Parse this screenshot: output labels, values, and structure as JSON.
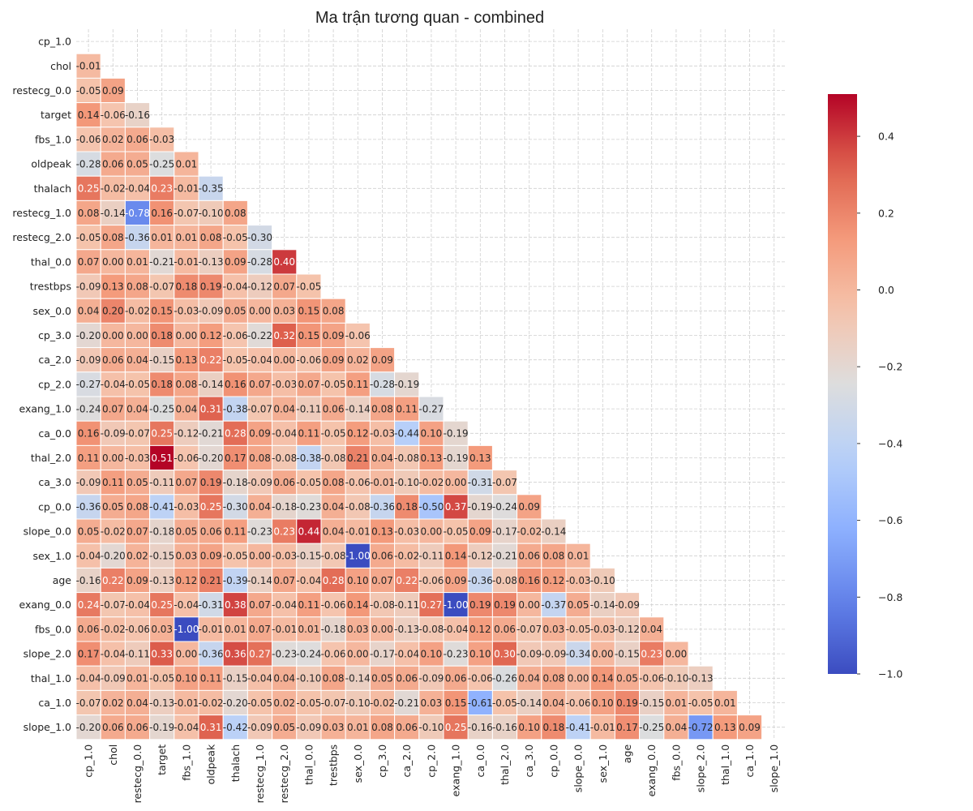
{
  "chart_data": {
    "type": "heatmap",
    "title": "Ma trận tương quan - combined",
    "labels": [
      "cp_1.0",
      "chol",
      "restecg_0.0",
      "target",
      "fbs_1.0",
      "oldpeak",
      "thalach",
      "restecg_1.0",
      "restecg_2.0",
      "thal_0.0",
      "trestbps",
      "sex_0.0",
      "cp_3.0",
      "ca_2.0",
      "cp_2.0",
      "exang_1.0",
      "ca_0.0",
      "thal_2.0",
      "ca_3.0",
      "cp_0.0",
      "slope_0.0",
      "sex_1.0",
      "age",
      "exang_0.0",
      "fbs_0.0",
      "slope_2.0",
      "thal_1.0",
      "ca_1.0",
      "slope_1.0"
    ],
    "mask": "upper-triangle-including-diagonal",
    "colormap": "coolwarm",
    "value_range": [
      -1.0,
      0.51
    ],
    "colorbar_ticks": [
      0.4,
      0.2,
      0.0,
      -0.2,
      -0.4,
      -0.6,
      -0.8,
      -1.0
    ],
    "colorbar_tick_labels": [
      "0.4",
      "0.2",
      "0.0",
      "−0.2",
      "−0.4",
      "−0.6",
      "−0.8",
      "−1.0"
    ],
    "grid": true,
    "values": [
      [],
      [
        -0.01
      ],
      [
        -0.05,
        0.09
      ],
      [
        0.14,
        -0.06,
        -0.16
      ],
      [
        -0.06,
        0.02,
        0.06,
        -0.03
      ],
      [
        -0.28,
        0.06,
        0.05,
        -0.25,
        0.01
      ],
      [
        0.25,
        -0.02,
        -0.04,
        0.23,
        -0.01,
        -0.35
      ],
      [
        0.08,
        -0.14,
        -0.78,
        0.16,
        -0.07,
        -0.1,
        0.08
      ],
      [
        -0.05,
        0.08,
        -0.36,
        0.01,
        0.01,
        0.08,
        -0.05,
        -0.3
      ],
      [
        0.07,
        -0.0,
        0.01,
        -0.21,
        -0.01,
        -0.13,
        0.09,
        -0.28,
        0.4
      ],
      [
        -0.09,
        0.13,
        0.08,
        -0.07,
        0.18,
        0.19,
        -0.04,
        -0.12,
        0.07,
        -0.05
      ],
      [
        0.04,
        0.2,
        -0.02,
        0.15,
        -0.03,
        -0.09,
        0.05,
        0.0,
        0.03,
        0.15,
        0.08
      ],
      [
        -0.2,
        -0.0,
        0.0,
        0.18,
        -0.0,
        0.12,
        -0.06,
        -0.22,
        0.32,
        0.15,
        0.09,
        -0.06
      ],
      [
        -0.09,
        0.06,
        0.04,
        -0.15,
        0.13,
        0.22,
        -0.05,
        -0.04,
        0.0,
        -0.06,
        0.09,
        0.02,
        0.09
      ],
      [
        -0.27,
        -0.04,
        -0.05,
        0.18,
        0.08,
        -0.14,
        0.16,
        0.07,
        -0.03,
        0.07,
        -0.05,
        0.11,
        -0.28,
        -0.19
      ],
      [
        -0.24,
        0.07,
        0.04,
        -0.25,
        0.04,
        0.31,
        -0.38,
        -0.07,
        0.04,
        -0.11,
        0.06,
        -0.14,
        0.08,
        0.11,
        -0.27
      ],
      [
        0.16,
        -0.09,
        -0.07,
        0.25,
        -0.12,
        -0.21,
        0.28,
        0.09,
        -0.04,
        0.11,
        -0.05,
        0.12,
        -0.03,
        -0.44,
        0.1,
        -0.19
      ],
      [
        0.11,
        -0.0,
        -0.03,
        0.51,
        -0.06,
        -0.2,
        0.17,
        0.08,
        -0.08,
        -0.38,
        -0.08,
        0.21,
        0.04,
        -0.08,
        0.13,
        -0.19,
        0.13
      ],
      [
        -0.09,
        0.11,
        0.05,
        -0.11,
        0.07,
        0.19,
        -0.18,
        -0.09,
        0.06,
        -0.05,
        0.08,
        -0.06,
        -0.01,
        -0.1,
        -0.02,
        0.0,
        -0.31,
        -0.07
      ],
      [
        -0.36,
        0.05,
        0.08,
        -0.41,
        -0.03,
        0.25,
        -0.3,
        0.04,
        -0.18,
        -0.23,
        0.04,
        -0.08,
        -0.36,
        0.18,
        -0.5,
        0.37,
        -0.19,
        -0.24,
        0.09
      ],
      [
        0.05,
        -0.02,
        0.07,
        -0.18,
        0.05,
        0.06,
        0.11,
        -0.23,
        0.23,
        0.44,
        0.04,
        -0.01,
        0.13,
        -0.03,
        0.0,
        -0.05,
        0.09,
        -0.17,
        -0.02,
        -0.14
      ],
      [
        -0.04,
        -0.2,
        0.02,
        -0.15,
        0.03,
        0.09,
        -0.05,
        -0.0,
        -0.03,
        -0.15,
        -0.08,
        -1.0,
        0.06,
        -0.02,
        -0.11,
        0.14,
        -0.12,
        -0.21,
        0.06,
        0.08,
        0.01
      ],
      [
        -0.16,
        0.22,
        0.09,
        -0.13,
        0.12,
        0.21,
        -0.39,
        -0.14,
        0.07,
        -0.04,
        0.28,
        0.1,
        0.07,
        0.22,
        -0.06,
        0.09,
        -0.36,
        -0.08,
        0.16,
        0.12,
        -0.03,
        -0.1
      ],
      [
        0.24,
        -0.07,
        -0.04,
        0.25,
        -0.04,
        -0.31,
        0.38,
        0.07,
        -0.04,
        0.11,
        -0.06,
        0.14,
        -0.08,
        -0.11,
        0.27,
        -1.0,
        0.19,
        0.19,
        -0.0,
        -0.37,
        0.05,
        -0.14,
        -0.09
      ],
      [
        0.06,
        -0.02,
        -0.06,
        0.03,
        -1.0,
        -0.01,
        0.01,
        0.07,
        -0.01,
        0.01,
        -0.18,
        0.03,
        0.0,
        -0.13,
        -0.08,
        -0.04,
        0.12,
        0.06,
        -0.07,
        0.03,
        -0.05,
        -0.03,
        -0.12,
        0.04
      ],
      [
        0.17,
        -0.04,
        -0.11,
        0.33,
        -0.0,
        -0.36,
        0.36,
        0.27,
        -0.23,
        -0.24,
        -0.06,
        -0.0,
        -0.17,
        -0.04,
        0.1,
        -0.23,
        0.1,
        0.3,
        -0.09,
        -0.09,
        -0.34,
        0.0,
        -0.15,
        0.23,
        0.0
      ],
      [
        -0.04,
        -0.09,
        0.01,
        -0.05,
        0.1,
        0.11,
        -0.15,
        -0.04,
        0.04,
        -0.1,
        0.08,
        -0.14,
        0.05,
        0.06,
        -0.09,
        0.06,
        -0.06,
        -0.26,
        0.04,
        0.08,
        -0.0,
        0.14,
        0.05,
        -0.06,
        -0.1,
        -0.13
      ],
      [
        -0.07,
        0.02,
        0.04,
        -0.13,
        -0.01,
        -0.02,
        -0.2,
        -0.05,
        0.02,
        -0.05,
        -0.07,
        -0.1,
        -0.02,
        -0.21,
        0.03,
        0.15,
        -0.61,
        -0.05,
        -0.14,
        0.04,
        -0.06,
        0.1,
        0.19,
        -0.15,
        0.01,
        -0.05,
        0.01
      ],
      [
        -0.2,
        0.06,
        0.06,
        -0.19,
        -0.04,
        0.31,
        -0.42,
        -0.09,
        0.05,
        -0.09,
        0.03,
        0.01,
        0.08,
        0.06,
        -0.1,
        0.25,
        -0.16,
        -0.16,
        0.1,
        0.18,
        -0.41,
        -0.01,
        0.17,
        -0.25,
        0.04,
        -0.72,
        0.13,
        0.09
      ]
    ]
  }
}
